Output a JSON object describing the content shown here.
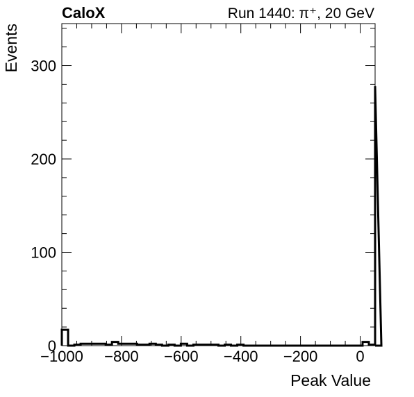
{
  "header": {
    "experiment": "CaloX",
    "run_info": "Run 1440: π⁺, 20 GeV"
  },
  "chart_data": {
    "type": "histogram",
    "xlabel": "Peak Value",
    "ylabel": "Events",
    "xlim": [
      -1000,
      50
    ],
    "ylim": [
      0,
      345
    ],
    "x_ticks": [
      {
        "value": -1000,
        "label": "−1000"
      },
      {
        "value": -800,
        "label": "−800"
      },
      {
        "value": -600,
        "label": "−600"
      },
      {
        "value": -400,
        "label": "−400"
      },
      {
        "value": -200,
        "label": "−200"
      },
      {
        "value": 0,
        "label": "0"
      }
    ],
    "y_ticks": [
      {
        "value": 0,
        "label": "0"
      },
      {
        "value": 100,
        "label": "100"
      },
      {
        "value": 200,
        "label": "200"
      },
      {
        "value": 300,
        "label": "300"
      }
    ],
    "bin_edges_start": -1000,
    "bin_width": 21,
    "counts": [
      17,
      0,
      1,
      2,
      2,
      2,
      2,
      1,
      4,
      2,
      2,
      2,
      1,
      1,
      2,
      1,
      0,
      1,
      0,
      2,
      0,
      1,
      1,
      1,
      1,
      0,
      1,
      0,
      1,
      0,
      0,
      0,
      0,
      0,
      0,
      0,
      0,
      0,
      0,
      0,
      0,
      0,
      0,
      0,
      0,
      0,
      0,
      0,
      4,
      1,
      278,
      0
    ]
  }
}
